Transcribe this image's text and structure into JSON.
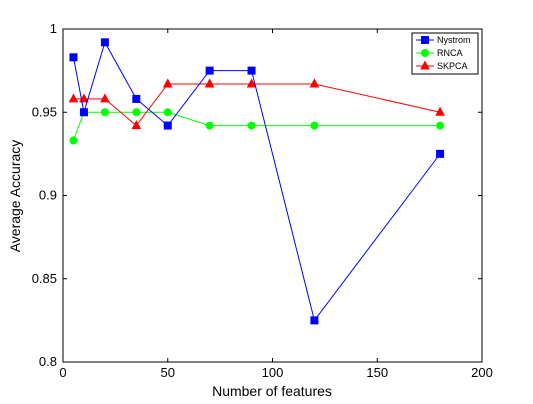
{
  "chart_data": {
    "type": "line",
    "title": "",
    "xlabel": "Number of features",
    "ylabel": "Average Accuracy",
    "xlim": [
      0,
      200
    ],
    "ylim": [
      0.8,
      1.0
    ],
    "xticks": [
      0,
      50,
      100,
      150,
      200
    ],
    "yticks": [
      0.8,
      0.85,
      0.9,
      0.95,
      1.0
    ],
    "xtick_labels": [
      "0",
      "50",
      "100",
      "150",
      "200"
    ],
    "ytick_labels": [
      "0.8",
      "0.85",
      "0.9",
      "0.95",
      "1"
    ],
    "grid": false,
    "legend_position": "top-right",
    "x": [
      5,
      10,
      20,
      35,
      50,
      70,
      90,
      120,
      180
    ],
    "series": [
      {
        "name": "Nystrom",
        "color": "#0000ff",
        "marker": "square",
        "values": [
          0.983,
          0.95,
          0.992,
          0.958,
          0.942,
          0.975,
          0.975,
          0.825,
          0.925
        ]
      },
      {
        "name": "RNCA",
        "color": "#00ff00",
        "marker": "circle",
        "values": [
          0.933,
          0.95,
          0.95,
          0.95,
          0.95,
          0.942,
          0.942,
          0.942,
          0.942
        ]
      },
      {
        "name": "SKPCA",
        "color": "#ff0000",
        "marker": "triangle",
        "values": [
          0.958,
          0.958,
          0.958,
          0.942,
          0.967,
          0.967,
          0.967,
          0.967,
          0.95
        ]
      }
    ]
  }
}
